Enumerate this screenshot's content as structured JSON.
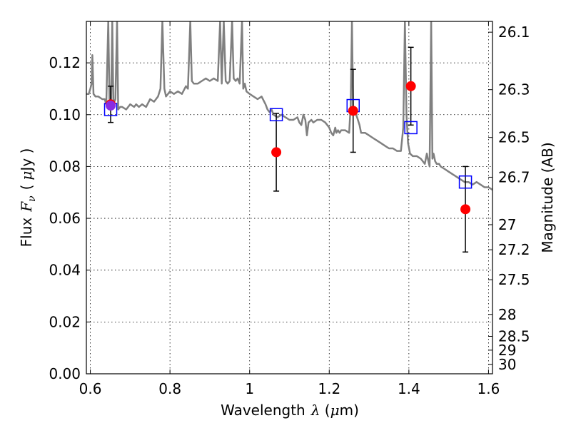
{
  "chart_data": {
    "type": "scatter",
    "xlabel": {
      "text": "Wavelength",
      "symbol": "λ",
      "unit_open": " (",
      "unit_mu": "μ",
      "unit_rest": "m)"
    },
    "ylabel": {
      "text": "Flux",
      "symbol": "F",
      "sub": "ν",
      "unit_open": "(",
      "unit_mu": "μ",
      "unit_rest": "Jy )"
    },
    "y2label": "Magnitude (AB)",
    "xlim": [
      0.59,
      1.61
    ],
    "ylim": [
      0.0,
      0.136
    ],
    "x_ticks": [
      {
        "v": 0.6,
        "label": "0.6"
      },
      {
        "v": 0.8,
        "label": "0.8"
      },
      {
        "v": 1.0,
        "label": "1"
      },
      {
        "v": 1.2,
        "label": "1.2"
      },
      {
        "v": 1.4,
        "label": "1.4"
      },
      {
        "v": 1.6,
        "label": "1.6"
      }
    ],
    "y_ticks": [
      {
        "v": 0.0,
        "label": "0.00"
      },
      {
        "v": 0.02,
        "label": "0.02"
      },
      {
        "v": 0.04,
        "label": "0.04"
      },
      {
        "v": 0.06,
        "label": "0.06"
      },
      {
        "v": 0.08,
        "label": "0.08"
      },
      {
        "v": 0.1,
        "label": "0.10"
      },
      {
        "v": 0.12,
        "label": "0.12"
      }
    ],
    "y2_ticks": [
      {
        "mag": 26.1,
        "label": "26.1"
      },
      {
        "mag": 26.3,
        "label": "26.3"
      },
      {
        "mag": 26.5,
        "label": "26.5"
      },
      {
        "mag": 26.7,
        "label": "26.7"
      },
      {
        "mag": 27.0,
        "label": "27"
      },
      {
        "mag": 27.2,
        "label": "27.2"
      },
      {
        "mag": 27.5,
        "label": "27.5"
      },
      {
        "mag": 28.0,
        "label": "28"
      },
      {
        "mag": 28.5,
        "label": "28.5"
      },
      {
        "mag": 29.0,
        "label": "29"
      },
      {
        "mag": 30.0,
        "label": "30"
      }
    ],
    "grid": true,
    "series": [
      {
        "kind": "line",
        "color": "#808080",
        "points": [
          [
            0.59,
            0.108
          ],
          [
            0.596,
            0.108
          ],
          [
            0.6,
            0.11
          ],
          [
            0.603,
            0.112
          ],
          [
            0.605,
            0.123
          ],
          [
            0.608,
            0.108
          ],
          [
            0.613,
            0.107
          ],
          [
            0.62,
            0.107
          ],
          [
            0.63,
            0.106
          ],
          [
            0.636,
            0.106
          ],
          [
            0.64,
            0.104
          ],
          [
            0.645,
            0.136
          ],
          [
            0.648,
            0.106
          ],
          [
            0.652,
            0.104
          ],
          [
            0.655,
            0.136
          ],
          [
            0.658,
            0.104
          ],
          [
            0.663,
            0.106
          ],
          [
            0.667,
            0.136
          ],
          [
            0.67,
            0.102
          ],
          [
            0.675,
            0.103
          ],
          [
            0.68,
            0.103
          ],
          [
            0.69,
            0.102
          ],
          [
            0.7,
            0.104
          ],
          [
            0.71,
            0.103
          ],
          [
            0.715,
            0.104
          ],
          [
            0.722,
            0.103
          ],
          [
            0.73,
            0.104
          ],
          [
            0.74,
            0.103
          ],
          [
            0.75,
            0.106
          ],
          [
            0.76,
            0.105
          ],
          [
            0.77,
            0.107
          ],
          [
            0.776,
            0.11
          ],
          [
            0.781,
            0.136
          ],
          [
            0.786,
            0.11
          ],
          [
            0.79,
            0.107
          ],
          [
            0.8,
            0.109
          ],
          [
            0.81,
            0.108
          ],
          [
            0.82,
            0.109
          ],
          [
            0.83,
            0.108
          ],
          [
            0.84,
            0.111
          ],
          [
            0.845,
            0.11
          ],
          [
            0.851,
            0.136
          ],
          [
            0.855,
            0.113
          ],
          [
            0.86,
            0.112
          ],
          [
            0.87,
            0.112
          ],
          [
            0.88,
            0.113
          ],
          [
            0.89,
            0.114
          ],
          [
            0.9,
            0.113
          ],
          [
            0.91,
            0.114
          ],
          [
            0.92,
            0.113
          ],
          [
            0.926,
            0.136
          ],
          [
            0.93,
            0.112
          ],
          [
            0.935,
            0.136
          ],
          [
            0.94,
            0.113
          ],
          [
            0.945,
            0.112
          ],
          [
            0.95,
            0.113
          ],
          [
            0.956,
            0.136
          ],
          [
            0.96,
            0.114
          ],
          [
            0.965,
            0.113
          ],
          [
            0.97,
            0.114
          ],
          [
            0.975,
            0.112
          ],
          [
            0.981,
            0.136
          ],
          [
            0.984,
            0.11
          ],
          [
            0.988,
            0.112
          ],
          [
            0.992,
            0.109
          ],
          [
            1.0,
            0.108
          ],
          [
            1.01,
            0.107
          ],
          [
            1.02,
            0.106
          ],
          [
            1.03,
            0.107
          ],
          [
            1.04,
            0.104
          ],
          [
            1.045,
            0.102
          ],
          [
            1.05,
            0.101
          ],
          [
            1.055,
            0.102
          ],
          [
            1.06,
            0.1
          ],
          [
            1.07,
            0.099
          ],
          [
            1.08,
            0.1
          ],
          [
            1.09,
            0.099
          ],
          [
            1.1,
            0.098
          ],
          [
            1.11,
            0.098
          ],
          [
            1.12,
            0.099
          ],
          [
            1.125,
            0.097
          ],
          [
            1.13,
            0.096
          ],
          [
            1.135,
            0.1
          ],
          [
            1.14,
            0.098
          ],
          [
            1.144,
            0.092
          ],
          [
            1.148,
            0.097
          ],
          [
            1.155,
            0.098
          ],
          [
            1.16,
            0.097
          ],
          [
            1.17,
            0.098
          ],
          [
            1.18,
            0.098
          ],
          [
            1.19,
            0.097
          ],
          [
            1.2,
            0.095
          ],
          [
            1.205,
            0.093
          ],
          [
            1.21,
            0.092
          ],
          [
            1.215,
            0.095
          ],
          [
            1.218,
            0.093
          ],
          [
            1.222,
            0.094
          ],
          [
            1.226,
            0.093
          ],
          [
            1.23,
            0.094
          ],
          [
            1.24,
            0.094
          ],
          [
            1.25,
            0.093
          ],
          [
            1.254,
            0.104
          ],
          [
            1.257,
            0.136
          ],
          [
            1.26,
            0.1
          ],
          [
            1.265,
            0.101
          ],
          [
            1.27,
            0.099
          ],
          [
            1.276,
            0.096
          ],
          [
            1.28,
            0.093
          ],
          [
            1.29,
            0.093
          ],
          [
            1.3,
            0.092
          ],
          [
            1.31,
            0.091
          ],
          [
            1.32,
            0.09
          ],
          [
            1.33,
            0.089
          ],
          [
            1.34,
            0.088
          ],
          [
            1.35,
            0.087
          ],
          [
            1.36,
            0.087
          ],
          [
            1.37,
            0.086
          ],
          [
            1.38,
            0.086
          ],
          [
            1.386,
            0.095
          ],
          [
            1.39,
            0.136
          ],
          [
            1.394,
            0.1
          ],
          [
            1.398,
            0.089
          ],
          [
            1.403,
            0.085
          ],
          [
            1.41,
            0.084
          ],
          [
            1.42,
            0.084
          ],
          [
            1.43,
            0.083
          ],
          [
            1.44,
            0.081
          ],
          [
            1.445,
            0.085
          ],
          [
            1.449,
            0.082
          ],
          [
            1.452,
            0.08
          ],
          [
            1.456,
            0.136
          ],
          [
            1.459,
            0.083
          ],
          [
            1.462,
            0.085
          ],
          [
            1.466,
            0.082
          ],
          [
            1.47,
            0.081
          ],
          [
            1.476,
            0.081
          ],
          [
            1.48,
            0.08
          ],
          [
            1.49,
            0.079
          ],
          [
            1.5,
            0.078
          ],
          [
            1.51,
            0.077
          ],
          [
            1.52,
            0.076
          ],
          [
            1.53,
            0.075
          ],
          [
            1.54,
            0.074
          ],
          [
            1.55,
            0.074
          ],
          [
            1.56,
            0.073
          ],
          [
            1.57,
            0.074
          ],
          [
            1.58,
            0.073
          ],
          [
            1.59,
            0.072
          ],
          [
            1.6,
            0.072
          ],
          [
            1.61,
            0.071
          ]
        ]
      },
      {
        "kind": "points",
        "marker": "circle",
        "color": "#ff0000",
        "points": [
          {
            "x": 0.651,
            "y": 0.104,
            "yerr": 0.007
          },
          {
            "x": 1.067,
            "y": 0.0855,
            "yerr": 0.015
          },
          {
            "x": 1.26,
            "y": 0.1015,
            "yerr": 0.016
          },
          {
            "x": 1.405,
            "y": 0.111,
            "yerr": 0.015
          },
          {
            "x": 1.542,
            "y": 0.0635,
            "yerr": 0.0165
          }
        ]
      },
      {
        "kind": "points",
        "marker": "open-square",
        "color": "#0000ff",
        "points": [
          {
            "x": 0.651,
            "y": 0.102
          },
          {
            "x": 1.067,
            "y": 0.1
          },
          {
            "x": 1.26,
            "y": 0.1035
          },
          {
            "x": 1.405,
            "y": 0.095
          },
          {
            "x": 1.542,
            "y": 0.074
          }
        ]
      }
    ],
    "overlap_marker": {
      "x": 0.651,
      "y": 0.1035,
      "color": "#8a2be2"
    }
  }
}
